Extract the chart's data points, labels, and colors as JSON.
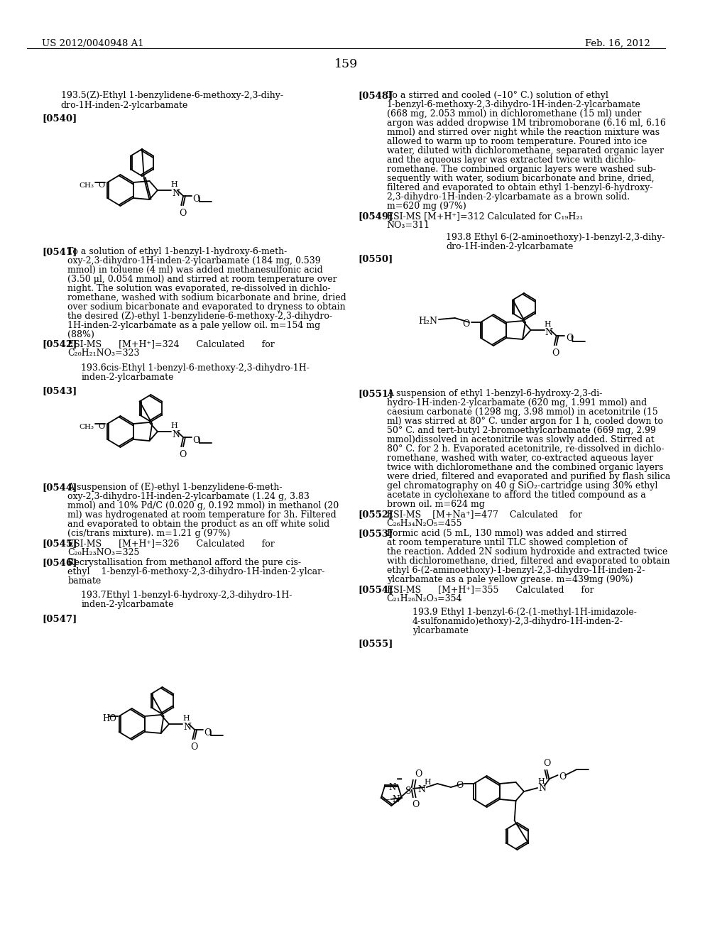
{
  "header_left": "US 2012/0040948 A1",
  "header_right": "Feb. 16, 2012",
  "page_number": "159",
  "bg": "#ffffff",
  "fg": "#000000"
}
